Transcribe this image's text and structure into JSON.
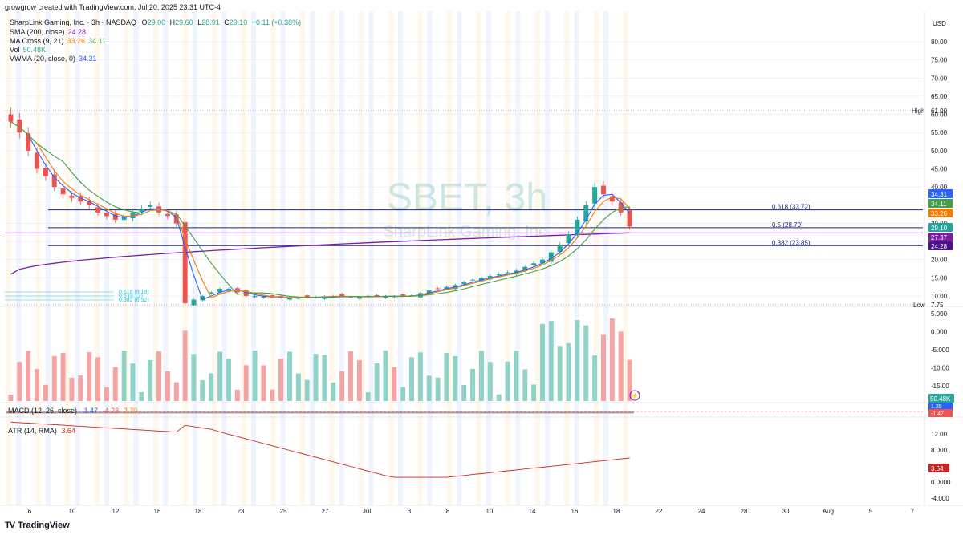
{
  "header": {
    "created_by": "growgrow created with TradingView.com, Jul 20, 2025 23:31 UTC-4",
    "symbol_line": "SharpLink Gaming, Inc. · 3h · NASDAQ",
    "ohlc": {
      "o_label": "O",
      "o": "29.00",
      "h_label": "H",
      "h": "29.60",
      "l_label": "L",
      "l": "28.91",
      "c_label": "C",
      "c": "29.10",
      "change": "+0.11 (+0.38%)"
    }
  },
  "legend": [
    {
      "label": "SMA (200, close)",
      "values": [
        "24.28"
      ],
      "colors": [
        "#7b1fa2"
      ]
    },
    {
      "label": "MA Cross (9, 21)",
      "values": [
        "33.26",
        "34.11"
      ],
      "colors": [
        "#f57c00",
        "#43a047"
      ]
    },
    {
      "label": "Vol",
      "values": [
        "50.48K"
      ],
      "colors": [
        "#26a69a"
      ]
    },
    {
      "label": "VWMA (20, close, 0)",
      "values": [
        "34.31"
      ],
      "colors": [
        "#2962ff"
      ]
    }
  ],
  "watermark": {
    "symbol": "SBET, 3h",
    "name": "SharpLink Gaming, Inc."
  },
  "chart_data": {
    "type": "candlestick",
    "currency": "USD",
    "price_axis_ticks": [
      80,
      75,
      70,
      65,
      60,
      55,
      50,
      45,
      40,
      35,
      30,
      25,
      20,
      15,
      10
    ],
    "price_axis_labels": [
      "80.00",
      "75.00",
      "70.00",
      "65.00",
      "60.00",
      "55.00",
      "50.00",
      "45.00",
      "40.00",
      "35.00",
      "30.00",
      "25.00",
      "20.00",
      "15.00",
      "10.00"
    ],
    "x_tick_labels": [
      "6",
      "10",
      "12",
      "16",
      "18",
      "23",
      "25",
      "27",
      "Jul",
      "3",
      "8",
      "10",
      "14",
      "16",
      "18",
      "22",
      "24",
      "28",
      "30",
      "Aug",
      "5",
      "7"
    ],
    "high": {
      "label": "High",
      "value": "61.00"
    },
    "low": {
      "label": "Low",
      "value": "7.75"
    },
    "fib_levels": [
      {
        "label": "0.618 (33.72)",
        "value": 33.72
      },
      {
        "label": "0.5 (28.79)",
        "value": 28.79
      },
      {
        "label": "0.382 (23.85)",
        "value": 23.85
      }
    ],
    "small_fib_levels": [
      {
        "label": "0.618 (9.18)",
        "value": 9.18
      },
      {
        "label": "0.5 (8.12)",
        "value": 8.12
      },
      {
        "label": "0.382 (6.52)",
        "value": 6.52
      }
    ],
    "price_badges": [
      {
        "value": "34.31",
        "color": "#2962ff"
      },
      {
        "value": "34.11",
        "color": "#43a047"
      },
      {
        "value": "33.26",
        "color": "#f57c00"
      },
      {
        "value": "29.10",
        "color": "#26a69a"
      },
      {
        "value": "27.37",
        "color": "#7b1fa2"
      },
      {
        "value": "24.28",
        "color": "#4a148c"
      }
    ],
    "closes": [
      58,
      55,
      50,
      45,
      43,
      40,
      38,
      37,
      36,
      35,
      33,
      32,
      31,
      32,
      33,
      34,
      35,
      33,
      32,
      30,
      8,
      9,
      10,
      11,
      12,
      12,
      11,
      10,
      10,
      9.8,
      9.6,
      9.5,
      9.5,
      9.6,
      9.6,
      9.8,
      9.9,
      10,
      9.9,
      9.8,
      9.7,
      9.8,
      10,
      10,
      9.9,
      9.9,
      10.2,
      10.8,
      11.5,
      12,
      12.5,
      13,
      13.8,
      14.5,
      15,
      15.5,
      16,
      16.5,
      17,
      18,
      19,
      20,
      22,
      24,
      27,
      31,
      35,
      40,
      38,
      36,
      33,
      29.1
    ],
    "volume_pane": {
      "axis_labels": [
        "5.000",
        "0.000",
        "-5.000",
        "-10.00",
        "-15.00"
      ],
      "last_volume": "50.48K"
    },
    "macd": {
      "label": "MACD (12, 26, close)",
      "values": [
        "-1.47",
        "-4.23",
        "2.70"
      ],
      "badges": [
        "1.25",
        "-1.47"
      ]
    },
    "atr": {
      "label": "ATR (14, RMA)",
      "value": "3.64",
      "axis_labels": [
        "12.00",
        "8.000",
        "4.000",
        "0.0000",
        "-4.000"
      ],
      "badge": "3.64"
    }
  },
  "footer": {
    "brand": "TradingView"
  },
  "colors": {
    "up": "#26a69a",
    "down": "#ef5350",
    "vol_up": "#8fd3c8",
    "vol_down": "#f5a3a3",
    "fib": "#1a237e",
    "sma200": "#7b1fa2",
    "ma9": "#f57c00",
    "ma21": "#43a047",
    "vwma": "#2962ff",
    "atr": "#c62828",
    "grid": "#e0e3eb"
  }
}
